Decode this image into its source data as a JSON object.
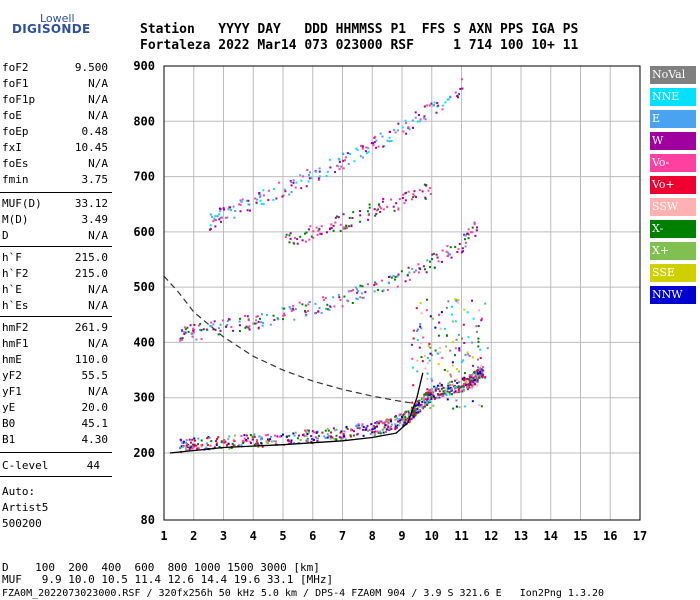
{
  "logo": {
    "line1": "Lowell",
    "line2": "DIGISONDE"
  },
  "header": {
    "line1": "Station   YYYY DAY   DDD HHMMSS P1  FFS S AXN PPS IGA PS",
    "line2": "Fortaleza 2022 Mar14 073 023000 RSF     1 714 100 10+ 11"
  },
  "params_group1": [
    {
      "label": "foF2",
      "value": "9.500"
    },
    {
      "label": "foF1",
      "value": "N/A"
    },
    {
      "label": "foF1p",
      "value": "N/A"
    },
    {
      "label": "foE",
      "value": "N/A"
    },
    {
      "label": "foEp",
      "value": "0.48"
    },
    {
      "label": "fxI",
      "value": "10.45"
    },
    {
      "label": "foEs",
      "value": "N/A"
    },
    {
      "label": "fmin",
      "value": "3.75"
    }
  ],
  "params_group2": [
    {
      "label": "MUF(D)",
      "value": "33.12"
    },
    {
      "label": "M(D)",
      "value": "3.49"
    },
    {
      "label": "D",
      "value": "N/A"
    }
  ],
  "params_group3": [
    {
      "label": "h`F",
      "value": "215.0"
    },
    {
      "label": "h`F2",
      "value": "215.0"
    },
    {
      "label": "h`E",
      "value": "N/A"
    },
    {
      "label": "h`Es",
      "value": "N/A"
    }
  ],
  "params_group4": [
    {
      "label": "hmF2",
      "value": "261.9"
    },
    {
      "label": "hmF1",
      "value": "N/A"
    },
    {
      "label": "hmE",
      "value": "110.0"
    },
    {
      "label": "yF2",
      "value": "55.5"
    },
    {
      "label": "yF1",
      "value": "N/A"
    },
    {
      "label": "yE",
      "value": "20.0"
    },
    {
      "label": "B0",
      "value": "45.1"
    },
    {
      "label": "B1",
      "value": "4.30"
    }
  ],
  "clevel": {
    "label": "C-level",
    "value": "44"
  },
  "auto": {
    "line1": "Auto:",
    "line2": "Artist5",
    "line3": "500200"
  },
  "legend": [
    {
      "label": "NoVal",
      "color": "#808080"
    },
    {
      "label": "NNE",
      "color": "#00e0ff"
    },
    {
      "label": "E",
      "color": "#4aa3f0"
    },
    {
      "label": "W",
      "color": "#a000a0"
    },
    {
      "label": "Vo-",
      "color": "#ff40a0"
    },
    {
      "label": "Vo+",
      "color": "#f00030"
    },
    {
      "label": "SSW",
      "color": "#ffb0b0"
    },
    {
      "label": "X-",
      "color": "#008000"
    },
    {
      "label": "X+",
      "color": "#80c050"
    },
    {
      "label": "SSE",
      "color": "#d0d000"
    },
    {
      "label": "NNW",
      "color": "#0000d0"
    }
  ],
  "footer": {
    "line1": "D    100  200  400  600  800 1000 1500 3000 [km]",
    "line2": "MUF   9.9 10.0 10.5 11.4 12.6 14.4 19.6 33.1 [MHz]",
    "line3": "FZA0M_2022073023000.RSF / 320fx256h 50 kHz 5.0 km / DPS-4 FZA0M 904 / 3.9 S 321.6 E   Ion2Png 1.3.20"
  },
  "chart_data": {
    "type": "scatter",
    "xlim": [
      1,
      17
    ],
    "ylim": [
      80,
      900
    ],
    "xticks": [
      "1",
      "2",
      "3",
      "4",
      "5",
      "6",
      "7",
      "8",
      "9",
      "10",
      "11",
      "12",
      "13",
      "14",
      "15",
      "16",
      "17"
    ],
    "yticks": [
      "80",
      "200",
      "300",
      "400",
      "500",
      "600",
      "700",
      "800",
      "900"
    ],
    "grid": true,
    "profile_line": [
      [
        1.2,
        200
      ],
      [
        3,
        210
      ],
      [
        5,
        215
      ],
      [
        7,
        222
      ],
      [
        8,
        228
      ],
      [
        8.8,
        236
      ],
      [
        9.2,
        255
      ],
      [
        9.5,
        300
      ],
      [
        9.7,
        345
      ]
    ],
    "dashed_curve": [
      [
        1,
        520
      ],
      [
        1.5,
        490
      ],
      [
        2,
        455
      ],
      [
        3,
        410
      ],
      [
        4,
        375
      ],
      [
        5,
        350
      ],
      [
        6,
        330
      ],
      [
        7,
        315
      ],
      [
        8,
        303
      ],
      [
        9,
        293
      ],
      [
        9.4,
        290
      ]
    ],
    "traces": [
      {
        "name": "O-trace 1st hop",
        "x": [
          1.5,
          2,
          3,
          4,
          5,
          6,
          7,
          8,
          8.5,
          9,
          9.3,
          9.5,
          9.8,
          10,
          10.5,
          11,
          11.3,
          11.5,
          11.7
        ],
        "y": [
          215,
          218,
          221,
          224,
          228,
          232,
          238,
          246,
          252,
          262,
          272,
          285,
          300,
          310,
          318,
          325,
          332,
          340,
          350
        ]
      },
      {
        "name": "2nd hop",
        "x": [
          1.5,
          2,
          3,
          4,
          5,
          6,
          7,
          8,
          9,
          10,
          11,
          11.5
        ],
        "y": [
          415,
          420,
          430,
          440,
          452,
          465,
          480,
          498,
          520,
          548,
          580,
          610
        ]
      },
      {
        "name": "3rd hop",
        "x": [
          2.5,
          3,
          4,
          5,
          6,
          7,
          8,
          9,
          10,
          11
        ],
        "y": [
          620,
          635,
          655,
          680,
          705,
          730,
          760,
          790,
          825,
          865
        ]
      },
      {
        "name": "hop 2 upper",
        "x": [
          5,
          6,
          7,
          8,
          9,
          10
        ],
        "y": [
          580,
          600,
          620,
          640,
          660,
          680
        ]
      }
    ]
  }
}
